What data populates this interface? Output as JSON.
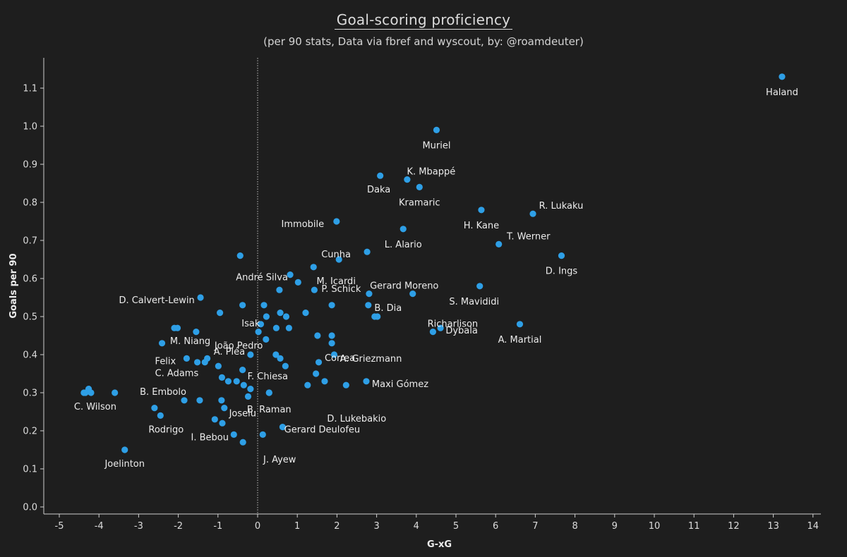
{
  "title": "Goal-scoring proficiency",
  "subtitle": "(per 90 stats, Data via fbref and wyscout, by: @roamdeuter)",
  "colors": {
    "background": "#1e1e1e",
    "point": "#2e9fe6",
    "text": "#e8e8e8"
  },
  "chart_data": {
    "type": "scatter",
    "xlabel": "G-xG",
    "ylabel": "Goals per 90",
    "xlim": [
      -5.3,
      14.2
    ],
    "ylim": [
      -0.02,
      1.2
    ],
    "xticks": [
      "-5",
      "-4",
      "-3",
      "-2",
      "-1",
      "0",
      "1",
      "2",
      "3",
      "4",
      "5",
      "6",
      "7",
      "8",
      "9",
      "10",
      "11",
      "12",
      "13",
      "14"
    ],
    "yticks": [
      "0.0",
      "0.1",
      "0.2",
      "0.3",
      "0.4",
      "0.5",
      "0.6",
      "0.7",
      "0.8",
      "0.9",
      "1.0",
      "1.1"
    ],
    "reference_line": {
      "axis": "x",
      "value": 0,
      "style": "dotted"
    },
    "grid": false,
    "points": [
      {
        "x": 13.22,
        "y": 1.13,
        "label": "Haland"
      },
      {
        "x": 4.51,
        "y": 0.99,
        "label": "Muriel"
      },
      {
        "x": 3.09,
        "y": 0.87,
        "label": "Daka"
      },
      {
        "x": 3.77,
        "y": 0.86,
        "label": "K. Mbappé"
      },
      {
        "x": 4.08,
        "y": 0.84,
        "label": "Kramaric"
      },
      {
        "x": 5.64,
        "y": 0.78,
        "label": "H. Kane"
      },
      {
        "x": 6.94,
        "y": 0.77,
        "label": "R. Lukaku"
      },
      {
        "x": 1.99,
        "y": 0.75,
        "label": "Immobile"
      },
      {
        "x": 3.67,
        "y": 0.73,
        "label": "L. Alario"
      },
      {
        "x": 6.08,
        "y": 0.69,
        "label": "T. Werner"
      },
      {
        "x": 2.76,
        "y": 0.67,
        "label": "Cunha"
      },
      {
        "x": 7.66,
        "y": 0.66,
        "label": "D. Ings"
      },
      {
        "x": -0.44,
        "y": 0.66,
        "label": ""
      },
      {
        "x": 2.05,
        "y": 0.65,
        "label": ""
      },
      {
        "x": 1.41,
        "y": 0.63,
        "label": "M. Icardi"
      },
      {
        "x": 0.82,
        "y": 0.61,
        "label": "André Silva"
      },
      {
        "x": 1.02,
        "y": 0.59,
        "label": ""
      },
      {
        "x": 5.6,
        "y": 0.58,
        "label": "S. Mavididi"
      },
      {
        "x": 0.55,
        "y": 0.57,
        "label": ""
      },
      {
        "x": 1.43,
        "y": 0.57,
        "label": "P. Schick"
      },
      {
        "x": 2.81,
        "y": 0.56,
        "label": ""
      },
      {
        "x": 3.91,
        "y": 0.56,
        "label": "Gerard Moreno"
      },
      {
        "x": -1.44,
        "y": 0.55,
        "label": "D. Calvert-Lewin"
      },
      {
        "x": -0.38,
        "y": 0.53,
        "label": ""
      },
      {
        "x": 0.16,
        "y": 0.53,
        "label": ""
      },
      {
        "x": 1.87,
        "y": 0.53,
        "label": ""
      },
      {
        "x": 2.79,
        "y": 0.53,
        "label": "B. Dia"
      },
      {
        "x": -0.95,
        "y": 0.51,
        "label": ""
      },
      {
        "x": 0.57,
        "y": 0.51,
        "label": ""
      },
      {
        "x": 1.21,
        "y": 0.51,
        "label": ""
      },
      {
        "x": 0.22,
        "y": 0.5,
        "label": "Isak"
      },
      {
        "x": 0.72,
        "y": 0.5,
        "label": ""
      },
      {
        "x": 2.95,
        "y": 0.5,
        "label": ""
      },
      {
        "x": 3.02,
        "y": 0.5,
        "label": ""
      },
      {
        "x": 0.08,
        "y": 0.48,
        "label": ""
      },
      {
        "x": -2.1,
        "y": 0.47,
        "label": ""
      },
      {
        "x": -2.02,
        "y": 0.47,
        "label": ""
      },
      {
        "x": 0.47,
        "y": 0.47,
        "label": ""
      },
      {
        "x": 0.79,
        "y": 0.47,
        "label": ""
      },
      {
        "x": 4.61,
        "y": 0.47,
        "label": "Dybala"
      },
      {
        "x": 6.61,
        "y": 0.48,
        "label": "A. Martial"
      },
      {
        "x": -1.55,
        "y": 0.46,
        "label": ""
      },
      {
        "x": 0.02,
        "y": 0.46,
        "label": "João Pedro"
      },
      {
        "x": 4.42,
        "y": 0.46,
        "label": "Richarlison"
      },
      {
        "x": 1.51,
        "y": 0.45,
        "label": ""
      },
      {
        "x": 1.87,
        "y": 0.45,
        "label": ""
      },
      {
        "x": 0.21,
        "y": 0.44,
        "label": ""
      },
      {
        "x": -2.41,
        "y": 0.43,
        "label": "M. Niang"
      },
      {
        "x": 1.87,
        "y": 0.43,
        "label": ""
      },
      {
        "x": -0.18,
        "y": 0.4,
        "label": "A. Pléa"
      },
      {
        "x": 0.46,
        "y": 0.4,
        "label": ""
      },
      {
        "x": 1.93,
        "y": 0.4,
        "label": "A. Griezmann"
      },
      {
        "x": -1.79,
        "y": 0.39,
        "label": "Felix"
      },
      {
        "x": -1.27,
        "y": 0.39,
        "label": ""
      },
      {
        "x": 0.57,
        "y": 0.39,
        "label": ""
      },
      {
        "x": -1.52,
        "y": 0.38,
        "label": ""
      },
      {
        "x": -1.33,
        "y": 0.38,
        "label": ""
      },
      {
        "x": 1.54,
        "y": 0.38,
        "label": "Correa"
      },
      {
        "x": -0.99,
        "y": 0.37,
        "label": ""
      },
      {
        "x": 0.7,
        "y": 0.37,
        "label": ""
      },
      {
        "x": -0.38,
        "y": 0.36,
        "label": ""
      },
      {
        "x": 1.47,
        "y": 0.35,
        "label": ""
      },
      {
        "x": -0.9,
        "y": 0.34,
        "label": "C. Adams"
      },
      {
        "x": -0.74,
        "y": 0.33,
        "label": ""
      },
      {
        "x": -0.53,
        "y": 0.33,
        "label": ""
      },
      {
        "x": 1.69,
        "y": 0.33,
        "label": ""
      },
      {
        "x": 2.74,
        "y": 0.33,
        "label": "Maxi Gómez"
      },
      {
        "x": -0.35,
        "y": 0.32,
        "label": "F. Chiesa"
      },
      {
        "x": 1.26,
        "y": 0.32,
        "label": ""
      },
      {
        "x": 2.23,
        "y": 0.32,
        "label": ""
      },
      {
        "x": -4.26,
        "y": 0.31,
        "label": ""
      },
      {
        "x": -0.18,
        "y": 0.31,
        "label": ""
      },
      {
        "x": -4.38,
        "y": 0.3,
        "label": ""
      },
      {
        "x": -4.34,
        "y": 0.3,
        "label": ""
      },
      {
        "x": -4.2,
        "y": 0.3,
        "label": "C. Wilson"
      },
      {
        "x": -3.6,
        "y": 0.3,
        "label": ""
      },
      {
        "x": 0.29,
        "y": 0.3,
        "label": "D. Lukebakio"
      },
      {
        "x": -0.24,
        "y": 0.29,
        "label": ""
      },
      {
        "x": -1.85,
        "y": 0.28,
        "label": "B. Embolo"
      },
      {
        "x": -1.46,
        "y": 0.28,
        "label": ""
      },
      {
        "x": -0.91,
        "y": 0.28,
        "label": ""
      },
      {
        "x": -2.6,
        "y": 0.26,
        "label": ""
      },
      {
        "x": -0.84,
        "y": 0.26,
        "label": "Joselu"
      },
      {
        "x": -2.45,
        "y": 0.24,
        "label": "Rodrigo"
      },
      {
        "x": -1.08,
        "y": 0.23,
        "label": ""
      },
      {
        "x": -0.89,
        "y": 0.22,
        "label": ""
      },
      {
        "x": 0.63,
        "y": 0.21,
        "label": "Gerard Deulofeu"
      },
      {
        "x": -0.6,
        "y": 0.19,
        "label": "I. Bebou"
      },
      {
        "x": 0.13,
        "y": 0.19,
        "label": ""
      },
      {
        "x": -0.37,
        "y": 0.17,
        "label": "J. Ayew"
      },
      {
        "x": -3.35,
        "y": 0.15,
        "label": "Joelinton"
      },
      {
        "x": 0.29,
        "y": 0.3,
        "label": "B. Raman"
      }
    ]
  }
}
